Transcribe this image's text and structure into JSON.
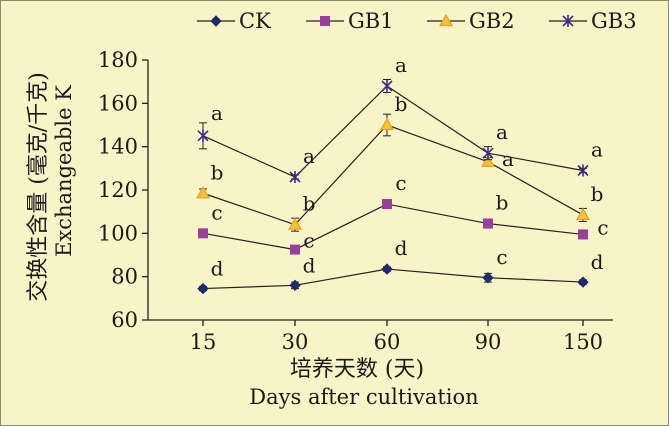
{
  "chart_data": {
    "type": "line",
    "categories": [
      "15",
      "30",
      "60",
      "90",
      "150"
    ],
    "ylabel_cn": "交换性含量 (毫克/千克)",
    "ylabel_en": "Exchangeable K",
    "xlabel_cn": "培养天数 (天)",
    "xlabel_en": "Days after cultivation",
    "ylim": [
      60,
      180
    ],
    "yticks": [
      "60",
      "80",
      "100",
      "120",
      "140",
      "160",
      "180"
    ],
    "legend_position": "top",
    "series": [
      {
        "name": "CK",
        "color": "#1f2a6b",
        "marker": "diamond",
        "values": [
          74.5,
          76,
          83.5,
          79.5,
          77.5
        ],
        "errors": [
          1,
          1.5,
          1,
          2,
          1
        ],
        "labels": [
          "d",
          "d",
          "d",
          "c",
          "d"
        ]
      },
      {
        "name": "GB1",
        "color": "#9b3f9b",
        "marker": "square",
        "values": [
          100,
          92.5,
          113.5,
          104.5,
          99.5
        ],
        "errors": [
          1.5,
          1.5,
          2,
          2,
          2
        ],
        "labels": [
          "c",
          "c",
          "c",
          "b",
          "c"
        ]
      },
      {
        "name": "GB2",
        "color": "#e6a21c",
        "marker": "triangle",
        "values": [
          118.5,
          104,
          150,
          133,
          108.5
        ],
        "errors": [
          2,
          3,
          5,
          2,
          3
        ],
        "labels": [
          "b",
          "b",
          "b",
          "a",
          "b"
        ]
      },
      {
        "name": "GB3",
        "color": "#3a2a8a",
        "marker": "star",
        "values": [
          145,
          126,
          168,
          137,
          129
        ],
        "errors": [
          6,
          1,
          3,
          3,
          1
        ],
        "labels": [
          "a",
          "a",
          "a",
          "a",
          "a"
        ]
      }
    ]
  }
}
